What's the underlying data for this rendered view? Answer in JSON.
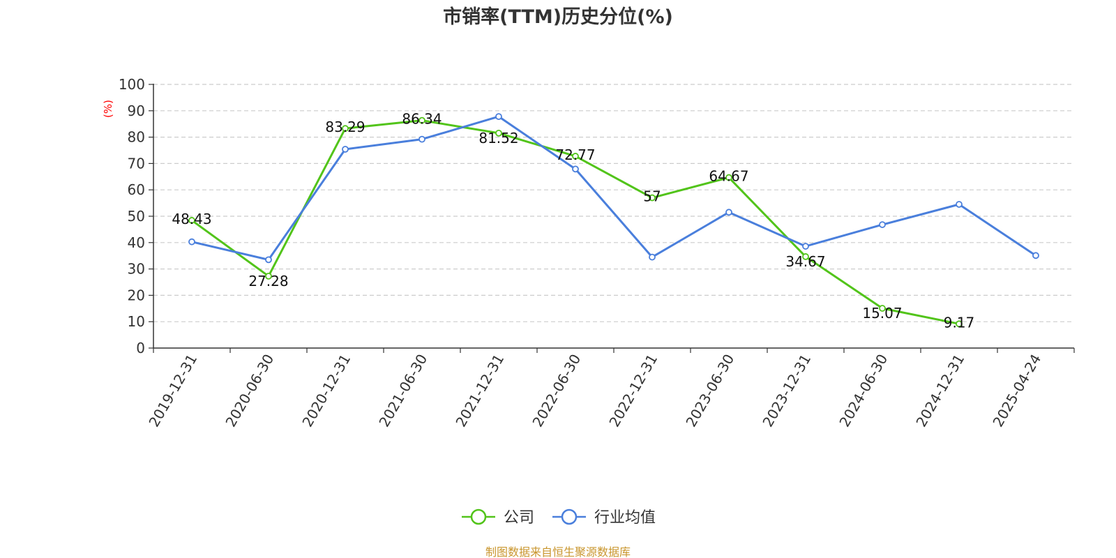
{
  "chart_data": {
    "type": "line",
    "title": "市销率(TTM)历史分位(%)",
    "ylabel": "(%)",
    "ylabel_color": "#ff0000",
    "ylim": [
      0,
      100
    ],
    "yticks": [
      0,
      10,
      20,
      30,
      40,
      50,
      60,
      70,
      80,
      90,
      100
    ],
    "grid": "horizontal-dashed",
    "legend_position": "bottom-center",
    "x_tick_labels": [
      "2019-12-31",
      "2020-06-30",
      "2020-12-31",
      "2021-06-30",
      "2021-12-31",
      "2022-06-30",
      "2022-12-31",
      "2023-06-30",
      "2023-12-31",
      "2024-06-30",
      "2024-12-31",
      "2025-04-24"
    ],
    "series": [
      {
        "name": "公司",
        "color": "#52c41a",
        "values": [
          48.43,
          27.28,
          83.29,
          86.34,
          81.52,
          72.77,
          57,
          64.67,
          34.67,
          15.07,
          9.17,
          null
        ],
        "labels": [
          "48.43",
          "27.28",
          "83.29",
          "86.34",
          "81.52",
          "72.77",
          "57",
          "64.67",
          "34.67",
          "15.07",
          "9.17",
          null
        ]
      },
      {
        "name": "行业均值",
        "color": "#4a7fdc",
        "values": [
          40.3,
          33.5,
          75.4,
          79.2,
          87.8,
          67.9,
          34.5,
          51.5,
          38.6,
          46.8,
          54.5,
          35.1
        ]
      }
    ],
    "source": "制图数据来自恒生聚源数据库",
    "source_color": "#c9962e"
  }
}
